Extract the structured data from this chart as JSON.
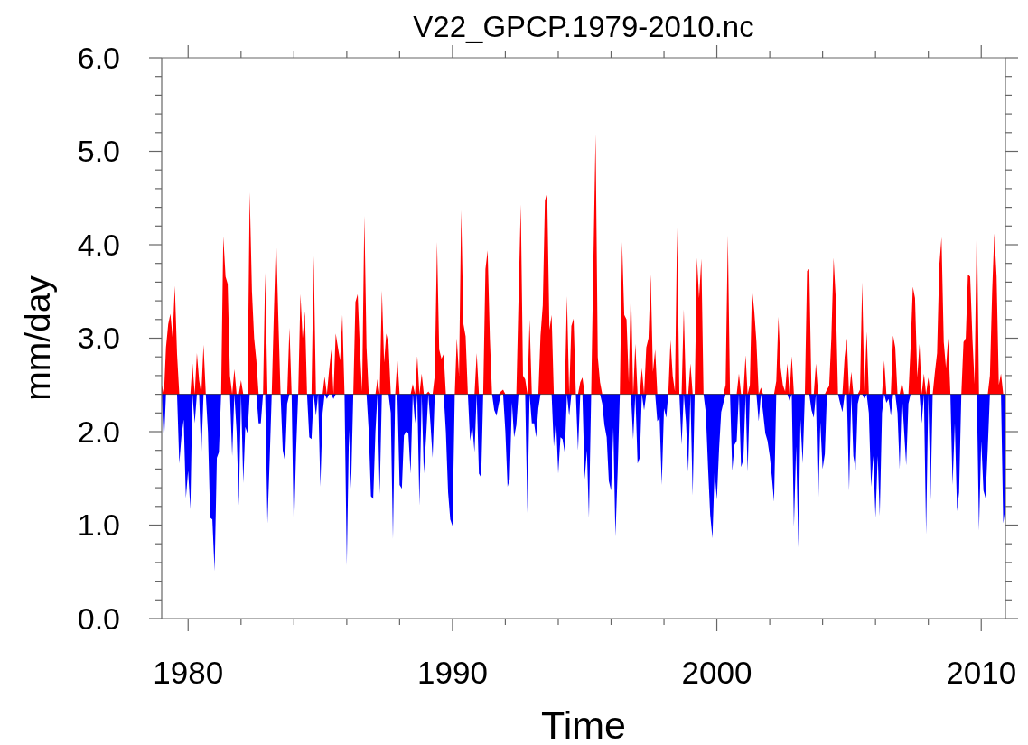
{
  "chart_data": {
    "type": "area",
    "title": "V22_GPCP.1979-2010.nc",
    "xlabel": "Time",
    "ylabel": "mm/day",
    "xlim": [
      "1979-01",
      "2010-12"
    ],
    "xticks": [
      "1980",
      {
        "value": "1982",
        "label": null
      },
      {
        "value": "1984",
        "label": null
      },
      {
        "value": "1986",
        "label": null
      },
      {
        "value": "1988",
        "label": null
      },
      "1990",
      {
        "value": "1992",
        "label": null
      },
      {
        "value": "1994",
        "label": null
      },
      {
        "value": "1996",
        "label": null
      },
      {
        "value": "1998",
        "label": null
      },
      "2000",
      {
        "value": "2002",
        "label": null
      },
      {
        "value": "2004",
        "label": null
      },
      {
        "value": "2006",
        "label": null
      },
      {
        "value": "2008",
        "label": null
      },
      "2010"
    ],
    "ylim": [
      0,
      6
    ],
    "yticks": [
      {
        "value": 0,
        "label": "0.0"
      },
      {
        "value": 0.2,
        "label": null
      },
      {
        "value": 0.4,
        "label": null
      },
      {
        "value": 0.6,
        "label": null
      },
      {
        "value": 0.8,
        "label": null
      },
      {
        "value": 1,
        "label": "1.0"
      },
      {
        "value": 1.2,
        "label": null
      },
      {
        "value": 1.4,
        "label": null
      },
      {
        "value": 1.6,
        "label": null
      },
      {
        "value": 1.8,
        "label": null
      },
      {
        "value": 2,
        "label": "2.0"
      },
      {
        "value": 2.2,
        "label": null
      },
      {
        "value": 2.4,
        "label": null
      },
      {
        "value": 2.6,
        "label": null
      },
      {
        "value": 2.8,
        "label": null
      },
      {
        "value": 3,
        "label": "3.0"
      },
      {
        "value": 3.2,
        "label": null
      },
      {
        "value": 3.4,
        "label": null
      },
      {
        "value": 3.6,
        "label": null
      },
      {
        "value": 3.8,
        "label": null
      },
      {
        "value": 4,
        "label": "4.0"
      },
      {
        "value": 4.2,
        "label": null
      },
      {
        "value": 4.4,
        "label": null
      },
      {
        "value": 4.6,
        "label": null
      },
      {
        "value": 4.8,
        "label": null
      },
      {
        "value": 5,
        "label": "5.0"
      },
      {
        "value": 5.2,
        "label": null
      },
      {
        "value": 5.4,
        "label": null
      },
      {
        "value": 5.6,
        "label": null
      },
      {
        "value": 5.8,
        "label": null
      },
      {
        "value": 6,
        "label": "6.0"
      }
    ],
    "ref_lines": [
      {
        "axis": "y",
        "value": 2.4
      }
    ],
    "x": [
      "1979-01",
      "1979-02",
      "1979-03",
      "1979-04",
      "1979-05",
      "1979-06",
      "1979-07",
      "1979-08",
      "1979-09",
      "1979-10",
      "1979-11",
      "1979-12",
      "1980-01",
      "1980-02",
      "1980-03",
      "1980-04",
      "1980-05",
      "1980-06",
      "1980-07",
      "1980-08",
      "1980-09",
      "1980-10",
      "1980-11",
      "1980-12",
      "1981-01",
      "1981-02",
      "1981-03",
      "1981-04",
      "1981-05",
      "1981-06",
      "1981-07",
      "1981-08",
      "1981-09",
      "1981-10",
      "1981-11",
      "1981-12",
      "1982-01",
      "1982-02",
      "1982-03",
      "1982-04",
      "1982-05",
      "1982-06",
      "1982-07",
      "1982-08",
      "1982-09",
      "1982-10",
      "1982-11",
      "1982-12",
      "1983-01",
      "1983-02",
      "1983-03",
      "1983-04",
      "1983-05",
      "1983-06",
      "1983-07",
      "1983-08",
      "1983-09",
      "1983-10",
      "1983-11",
      "1983-12",
      "1984-01",
      "1984-02",
      "1984-03",
      "1984-04",
      "1984-05",
      "1984-06",
      "1984-07",
      "1984-08",
      "1984-09",
      "1984-10",
      "1984-11",
      "1984-12",
      "1985-01",
      "1985-02",
      "1985-03",
      "1985-04",
      "1985-05",
      "1985-06",
      "1985-07",
      "1985-08",
      "1985-09",
      "1985-10",
      "1985-11",
      "1985-12",
      "1986-01",
      "1986-02",
      "1986-03",
      "1986-04",
      "1986-05",
      "1986-06",
      "1986-07",
      "1986-08",
      "1986-09",
      "1986-10",
      "1986-11",
      "1986-12",
      "1987-01",
      "1987-02",
      "1987-03",
      "1987-04",
      "1987-05",
      "1987-06",
      "1987-07",
      "1987-08",
      "1987-09",
      "1987-10",
      "1987-11",
      "1987-12",
      "1988-01",
      "1988-02",
      "1988-03",
      "1988-04",
      "1988-05",
      "1988-06",
      "1988-07",
      "1988-08",
      "1988-09",
      "1988-10",
      "1988-11",
      "1988-12",
      "1989-01",
      "1989-02",
      "1989-03",
      "1989-04",
      "1989-05",
      "1989-06",
      "1989-07",
      "1989-08",
      "1989-09",
      "1989-10",
      "1989-11",
      "1989-12",
      "1990-01",
      "1990-02",
      "1990-03",
      "1990-04",
      "1990-05",
      "1990-06",
      "1990-07",
      "1990-08",
      "1990-09",
      "1990-10",
      "1990-11",
      "1990-12",
      "1991-01",
      "1991-02",
      "1991-03",
      "1991-04",
      "1991-05",
      "1991-06",
      "1991-07",
      "1991-08",
      "1991-09",
      "1991-10",
      "1991-11",
      "1991-12",
      "1992-01",
      "1992-02",
      "1992-03",
      "1992-04",
      "1992-05",
      "1992-06",
      "1992-07",
      "1992-08",
      "1992-09",
      "1992-10",
      "1992-11",
      "1992-12",
      "1993-01",
      "1993-02",
      "1993-03",
      "1993-04",
      "1993-05",
      "1993-06",
      "1993-07",
      "1993-08",
      "1993-09",
      "1993-10",
      "1993-11",
      "1993-12",
      "1994-01",
      "1994-02",
      "1994-03",
      "1994-04",
      "1994-05",
      "1994-06",
      "1994-07",
      "1994-08",
      "1994-09",
      "1994-10",
      "1994-11",
      "1994-12",
      "1995-01",
      "1995-02",
      "1995-03",
      "1995-04",
      "1995-05",
      "1995-06",
      "1995-07",
      "1995-08",
      "1995-09",
      "1995-10",
      "1995-11",
      "1995-12",
      "1996-01",
      "1996-02",
      "1996-03",
      "1996-04",
      "1996-05",
      "1996-06",
      "1996-07",
      "1996-08",
      "1996-09",
      "1996-10",
      "1996-11",
      "1996-12",
      "1997-01",
      "1997-02",
      "1997-03",
      "1997-04",
      "1997-05",
      "1997-06",
      "1997-07",
      "1997-08",
      "1997-09",
      "1997-10",
      "1997-11",
      "1997-12",
      "1998-01",
      "1998-02",
      "1998-03",
      "1998-04",
      "1998-05",
      "1998-06",
      "1998-07",
      "1998-08",
      "1998-09",
      "1998-10",
      "1998-11",
      "1998-12",
      "1999-01",
      "1999-02",
      "1999-03",
      "1999-04",
      "1999-05",
      "1999-06",
      "1999-07",
      "1999-08",
      "1999-09",
      "1999-10",
      "1999-11",
      "1999-12",
      "2000-01",
      "2000-02",
      "2000-03",
      "2000-04",
      "2000-05",
      "2000-06",
      "2000-07",
      "2000-08",
      "2000-09",
      "2000-10",
      "2000-11",
      "2000-12",
      "2001-01",
      "2001-02",
      "2001-03",
      "2001-04",
      "2001-05",
      "2001-06",
      "2001-07",
      "2001-08",
      "2001-09",
      "2001-10",
      "2001-11",
      "2001-12",
      "2002-01",
      "2002-02",
      "2002-03",
      "2002-04",
      "2002-05",
      "2002-06",
      "2002-07",
      "2002-08",
      "2002-09",
      "2002-10",
      "2002-11",
      "2002-12",
      "2003-01",
      "2003-02",
      "2003-03",
      "2003-04",
      "2003-05",
      "2003-06",
      "2003-07",
      "2003-08",
      "2003-09",
      "2003-10",
      "2003-11",
      "2003-12",
      "2004-01",
      "2004-02",
      "2004-03",
      "2004-04",
      "2004-05",
      "2004-06",
      "2004-07",
      "2004-08",
      "2004-09",
      "2004-10",
      "2004-11",
      "2004-12",
      "2005-01",
      "2005-02",
      "2005-03",
      "2005-04",
      "2005-05",
      "2005-06",
      "2005-07",
      "2005-08",
      "2005-09",
      "2005-10",
      "2005-11",
      "2005-12",
      "2006-01",
      "2006-02",
      "2006-03",
      "2006-04",
      "2006-05",
      "2006-06",
      "2006-07",
      "2006-08",
      "2006-09",
      "2006-10",
      "2006-11",
      "2006-12",
      "2007-01",
      "2007-02",
      "2007-03",
      "2007-04",
      "2007-05",
      "2007-06",
      "2007-07",
      "2007-08",
      "2007-09",
      "2007-10",
      "2007-11",
      "2007-12",
      "2008-01",
      "2008-02",
      "2008-03",
      "2008-04",
      "2008-05",
      "2008-06",
      "2008-07",
      "2008-08",
      "2008-09",
      "2008-10",
      "2008-11",
      "2008-12",
      "2009-01",
      "2009-02",
      "2009-03",
      "2009-04",
      "2009-05",
      "2009-06",
      "2009-07",
      "2009-08",
      "2009-09",
      "2009-10",
      "2009-11",
      "2009-12",
      "2010-01",
      "2010-02",
      "2010-03",
      "2010-04",
      "2010-05",
      "2010-06",
      "2010-07",
      "2010-08",
      "2010-09",
      "2010-10",
      "2010-11",
      "2010-12"
    ],
    "series": [
      {
        "color": "#ff0000",
        "values": [
          2.5,
          2.4,
          2.9,
          3.15,
          3.26,
          3.0,
          3.56,
          2.83,
          2.4,
          2.4,
          2.4,
          2.4,
          2.4,
          2.4,
          2.73,
          2.4,
          2.84,
          2.55,
          2.4,
          2.93,
          2.4,
          2.4,
          2.4,
          2.4,
          2.4,
          2.4,
          2.4,
          2.4,
          4.09,
          3.66,
          3.58,
          2.6,
          2.4,
          2.67,
          2.4,
          2.4,
          2.55,
          2.4,
          2.4,
          2.4,
          4.56,
          3.5,
          3.0,
          2.76,
          2.4,
          2.4,
          2.4,
          3.7,
          2.4,
          2.4,
          2.4,
          3.3,
          4.09,
          3.2,
          2.4,
          2.4,
          2.4,
          2.4,
          3.11,
          2.4,
          2.4,
          2.4,
          2.4,
          3.47,
          3.0,
          3.29,
          2.4,
          2.4,
          2.4,
          3.88,
          2.4,
          2.4,
          2.4,
          2.4,
          2.59,
          2.4,
          2.65,
          2.88,
          2.4,
          3.05,
          2.9,
          2.76,
          3.25,
          2.4,
          2.4,
          2.4,
          2.4,
          2.4,
          3.39,
          3.47,
          2.9,
          2.43,
          4.31,
          2.9,
          2.4,
          2.4,
          2.4,
          2.4,
          2.56,
          2.4,
          3.51,
          2.74,
          3.05,
          2.94,
          2.4,
          2.4,
          2.4,
          2.78,
          2.4,
          2.4,
          2.4,
          2.4,
          2.4,
          2.4,
          2.51,
          2.4,
          2.81,
          2.4,
          2.62,
          2.4,
          2.4,
          2.43,
          2.4,
          2.4,
          2.6,
          4.03,
          2.88,
          2.78,
          2.83,
          2.4,
          2.4,
          2.4,
          2.4,
          2.4,
          3.0,
          2.6,
          4.37,
          3.15,
          3.02,
          2.4,
          2.4,
          2.4,
          2.4,
          2.84,
          2.4,
          2.4,
          2.4,
          3.74,
          3.94,
          3.0,
          2.4,
          2.4,
          2.4,
          2.4,
          2.43,
          2.45,
          2.4,
          2.4,
          2.4,
          2.4,
          2.4,
          2.4,
          3.4,
          4.43,
          2.6,
          2.56,
          2.4,
          3.2,
          2.4,
          2.4,
          2.4,
          2.4,
          3.03,
          3.35,
          4.47,
          4.56,
          3.09,
          3.25,
          2.4,
          2.4,
          2.4,
          2.4,
          2.4,
          2.4,
          3.45,
          2.4,
          3.13,
          3.21,
          2.4,
          2.4,
          2.53,
          2.58,
          2.4,
          2.4,
          2.4,
          2.4,
          3.8,
          5.18,
          2.8,
          2.53,
          2.4,
          2.4,
          2.4,
          2.4,
          2.4,
          2.4,
          2.4,
          2.4,
          2.4,
          4.03,
          3.25,
          3.2,
          2.53,
          3.56,
          2.4,
          2.94,
          2.4,
          2.4,
          2.68,
          2.4,
          2.9,
          3.0,
          3.68,
          2.64,
          2.88,
          2.4,
          2.4,
          2.4,
          2.4,
          2.4,
          2.4,
          2.98,
          2.6,
          2.43,
          4.18,
          2.4,
          2.4,
          3.31,
          2.4,
          2.4,
          2.73,
          2.4,
          2.4,
          3.86,
          3.43,
          3.85,
          2.4,
          2.4,
          2.4,
          2.4,
          2.4,
          2.4,
          2.4,
          2.4,
          2.4,
          2.4,
          2.5,
          4.1,
          2.4,
          2.4,
          2.4,
          2.4,
          2.62,
          2.4,
          2.4,
          2.82,
          2.4,
          2.5,
          3.53,
          3.29,
          2.96,
          2.4,
          2.47,
          2.4,
          2.4,
          2.4,
          2.4,
          2.4,
          2.4,
          2.54,
          3.23,
          2.68,
          2.5,
          2.43,
          2.73,
          2.4,
          2.81,
          2.4,
          2.4,
          2.4,
          2.4,
          2.4,
          2.4,
          3.72,
          3.74,
          2.4,
          2.4,
          2.73,
          2.4,
          2.4,
          2.4,
          2.4,
          2.45,
          2.49,
          3.0,
          3.86,
          3.43,
          2.4,
          2.4,
          2.4,
          2.8,
          3.0,
          2.4,
          2.64,
          2.4,
          2.4,
          2.4,
          2.45,
          3.6,
          2.4,
          3.07,
          2.4,
          2.4,
          2.4,
          2.4,
          2.4,
          2.4,
          2.4,
          2.76,
          2.4,
          2.4,
          2.4,
          3.03,
          2.9,
          2.4,
          2.4,
          2.53,
          2.4,
          2.4,
          2.4,
          2.9,
          3.55,
          3.43,
          2.58,
          2.94,
          2.4,
          2.62,
          2.4,
          2.58,
          2.4,
          2.4,
          2.64,
          2.84,
          3.78,
          4.08,
          2.96,
          2.68,
          3.0,
          2.4,
          2.4,
          2.4,
          2.4,
          2.4,
          2.4,
          2.96,
          3.0,
          3.68,
          3.66,
          3.0,
          2.51,
          4.3,
          2.4,
          2.4,
          2.4,
          2.4,
          2.4,
          2.6,
          3.5,
          4.12,
          3.66,
          2.5,
          2.62,
          2.4,
          2.4
        ]
      },
      {
        "color": "#0000ff",
        "values": [
          2.4,
          1.88,
          2.4,
          2.4,
          2.4,
          2.4,
          2.4,
          2.4,
          1.66,
          1.95,
          2.13,
          1.29,
          1.58,
          1.17,
          2.4,
          2.09,
          2.4,
          2.4,
          1.74,
          2.4,
          2.4,
          2.0,
          1.08,
          1.06,
          0.51,
          1.72,
          1.78,
          2.4,
          2.4,
          2.4,
          2.4,
          2.4,
          1.74,
          2.4,
          2.0,
          1.21,
          2.4,
          1.45,
          2.05,
          1.98,
          2.4,
          2.4,
          2.4,
          2.4,
          2.09,
          2.09,
          2.4,
          2.4,
          1.02,
          1.7,
          2.4,
          2.4,
          2.4,
          2.4,
          2.4,
          1.8,
          1.68,
          2.3,
          2.4,
          2.4,
          0.9,
          1.8,
          2.4,
          2.4,
          2.4,
          2.4,
          2.4,
          1.94,
          1.92,
          2.4,
          2.17,
          2.4,
          1.41,
          2.2,
          2.4,
          2.35,
          2.4,
          2.4,
          2.35,
          2.4,
          2.4,
          2.4,
          2.4,
          2.4,
          0.57,
          2.02,
          1.39,
          2.4,
          2.4,
          2.4,
          2.4,
          2.4,
          2.4,
          2.4,
          2.0,
          1.31,
          1.28,
          2.0,
          2.4,
          1.33,
          2.4,
          2.4,
          2.4,
          2.4,
          2.2,
          0.85,
          2.4,
          2.4,
          1.43,
          1.39,
          1.96,
          2.0,
          1.98,
          1.55,
          2.4,
          2.09,
          2.4,
          1.21,
          2.4,
          1.55,
          1.94,
          2.4,
          2.1,
          1.72,
          2.4,
          2.4,
          2.4,
          2.4,
          2.4,
          2.0,
          1.35,
          1.06,
          0.99,
          2.4,
          2.4,
          2.4,
          2.4,
          2.4,
          2.4,
          2.4,
          1.9,
          2.07,
          1.78,
          2.4,
          1.55,
          1.51,
          2.4,
          2.4,
          2.4,
          2.4,
          2.4,
          2.23,
          2.17,
          2.29,
          2.4,
          2.4,
          2.0,
          1.41,
          1.49,
          2.31,
          1.94,
          2.07,
          2.4,
          2.4,
          2.4,
          2.4,
          1.13,
          2.4,
          2.09,
          2.09,
          1.94,
          2.25,
          2.4,
          2.4,
          2.4,
          2.4,
          2.4,
          2.4,
          1.84,
          2.13,
          1.55,
          1.94,
          1.92,
          1.77,
          2.4,
          2.17,
          2.4,
          2.4,
          2.4,
          1.8,
          2.4,
          2.4,
          1.49,
          1.8,
          1.08,
          2.4,
          2.4,
          2.4,
          2.4,
          2.4,
          2.3,
          2.07,
          1.94,
          1.47,
          1.37,
          2.04,
          0.88,
          1.58,
          2.4,
          2.4,
          2.4,
          2.4,
          2.4,
          2.4,
          1.92,
          2.4,
          1.66,
          1.72,
          2.4,
          2.23,
          2.4,
          2.4,
          2.4,
          2.4,
          2.4,
          2.11,
          2.15,
          1.43,
          2.25,
          2.15,
          2.4,
          2.4,
          2.4,
          2.4,
          2.4,
          2.4,
          1.86,
          2.4,
          2.1,
          1.57,
          2.4,
          1.32,
          2.4,
          2.4,
          2.4,
          2.4,
          2.4,
          2.21,
          1.62,
          1.11,
          0.86,
          1.58,
          1.27,
          1.82,
          2.21,
          2.31,
          2.4,
          2.4,
          2.4,
          1.58,
          1.86,
          1.9,
          2.4,
          1.62,
          1.7,
          2.4,
          1.57,
          2.4,
          2.4,
          2.4,
          2.4,
          2.11,
          2.4,
          2.2,
          1.98,
          1.9,
          1.74,
          1.5,
          1.25,
          2.4,
          2.4,
          2.4,
          2.4,
          2.4,
          2.4,
          2.33,
          2.4,
          0.98,
          1.84,
          0.76,
          2.13,
          1.66,
          2.4,
          2.4,
          2.4,
          2.23,
          2.15,
          2.4,
          1.19,
          2.1,
          1.6,
          1.76,
          2.4,
          2.4,
          2.4,
          2.4,
          2.4,
          2.4,
          2.3,
          2.21,
          2.4,
          2.4,
          1.37,
          2.4,
          1.74,
          1.59,
          2.3,
          2.4,
          2.4,
          2.35,
          2.4,
          2.2,
          1.41,
          1.74,
          1.08,
          1.74,
          1.1,
          2.2,
          2.4,
          2.31,
          2.35,
          2.17,
          2.4,
          2.4,
          2.2,
          1.6,
          2.4,
          2.0,
          1.64,
          2.3,
          2.4,
          2.4,
          2.4,
          2.4,
          2.4,
          2.09,
          2.4,
          0.9,
          2.4,
          1.27,
          2.4,
          2.4,
          2.4,
          2.4,
          2.4,
          2.4,
          2.4,
          2.4,
          2.4,
          1.43,
          2.09,
          1.15,
          1.35,
          2.4,
          2.4,
          2.4,
          2.4,
          2.4,
          2.4,
          2.4,
          2.4,
          0.94,
          1.9,
          1.37,
          1.29,
          1.82,
          2.4,
          2.4,
          2.4,
          2.4,
          2.4,
          2.4,
          1.02,
          1.19
        ]
      }
    ]
  }
}
